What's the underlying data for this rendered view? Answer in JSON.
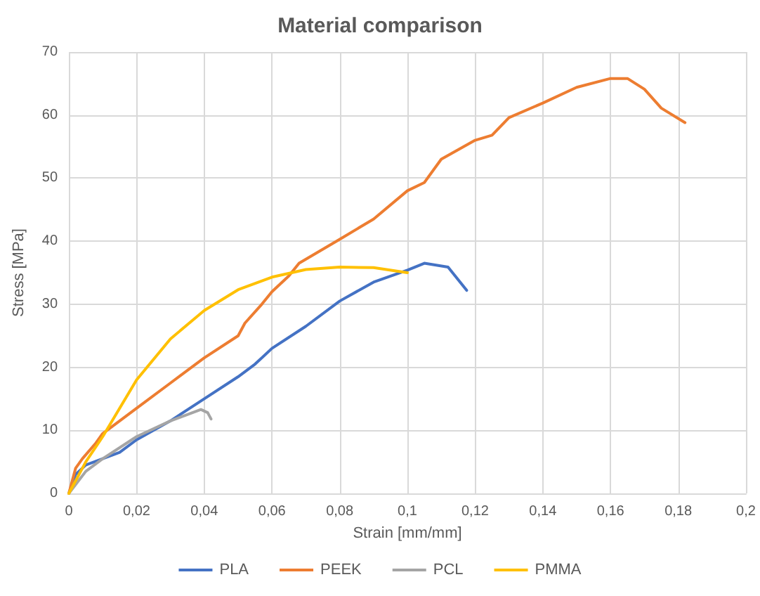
{
  "chart_data": {
    "type": "line",
    "title": "Material comparison",
    "xlabel": "Strain [mm/mm]",
    "ylabel": "Stress [MPa]",
    "xlim": [
      0,
      0.2
    ],
    "ylim": [
      0,
      70
    ],
    "xticks": [
      0,
      {
        "value": 0.02,
        "label": "0,02"
      },
      {
        "value": 0.04,
        "label": "0,04"
      },
      {
        "value": 0.06,
        "label": "0,06"
      },
      {
        "value": 0.08,
        "label": "0,08"
      },
      {
        "value": 0.1,
        "label": "0,1"
      },
      {
        "value": 0.12,
        "label": "0,12"
      },
      {
        "value": 0.14,
        "label": "0,14"
      },
      {
        "value": 0.16,
        "label": "0,16"
      },
      {
        "value": 0.18,
        "label": "0,18"
      },
      {
        "value": 0.2,
        "label": "0,2"
      }
    ],
    "yticks": [
      0,
      10,
      20,
      30,
      40,
      50,
      60,
      70
    ],
    "grid": true,
    "legend": "bottom",
    "marker": "none",
    "line_style": "solid",
    "series": [
      {
        "name": "PLA",
        "color": "#4472c4",
        "x": [
          0,
          0.002,
          0.005,
          0.01,
          0.015,
          0.02,
          0.03,
          0.04,
          0.05,
          0.055,
          0.06,
          0.07,
          0.08,
          0.09,
          0.1,
          0.105,
          0.112,
          0.1175
        ],
        "values": [
          0,
          3,
          4.5,
          5.5,
          6.5,
          8.5,
          11.5,
          15,
          18.5,
          20.5,
          23,
          26.5,
          30.5,
          33.5,
          35.4,
          36.5,
          35.9,
          32.2
        ]
      },
      {
        "name": "PEEK",
        "color": "#ed7d31",
        "x": [
          0,
          0.002,
          0.004,
          0.008,
          0.01,
          0.02,
          0.03,
          0.04,
          0.05,
          0.052,
          0.057,
          0.06,
          0.065,
          0.068,
          0.08,
          0.09,
          0.1,
          0.105,
          0.11,
          0.12,
          0.125,
          0.13,
          0.14,
          0.15,
          0.16,
          0.165,
          0.17,
          0.175,
          0.182
        ],
        "values": [
          0,
          4,
          5.5,
          8,
          9.5,
          13.5,
          17.5,
          21.5,
          25,
          27,
          30,
          32,
          34.5,
          36.5,
          40.3,
          43.5,
          48,
          49.3,
          53,
          56,
          56.8,
          59.6,
          61.9,
          64.4,
          65.8,
          65.8,
          64.1,
          61.1,
          58.8
        ]
      },
      {
        "name": "PCL",
        "color": "#a5a5a5",
        "x": [
          0,
          0.005,
          0.01,
          0.02,
          0.03,
          0.035,
          0.039,
          0.041,
          0.042
        ],
        "values": [
          0,
          3.5,
          5.5,
          9,
          11.5,
          12.5,
          13.3,
          12.8,
          11.8
        ]
      },
      {
        "name": "PMMA",
        "color": "#ffc000",
        "x": [
          0,
          0.005,
          0.01,
          0.02,
          0.03,
          0.04,
          0.05,
          0.06,
          0.07,
          0.08,
          0.09,
          0.1
        ],
        "values": [
          0,
          5,
          9,
          18,
          24.5,
          29,
          32.3,
          34.3,
          35.5,
          35.9,
          35.8,
          35
        ]
      }
    ]
  }
}
